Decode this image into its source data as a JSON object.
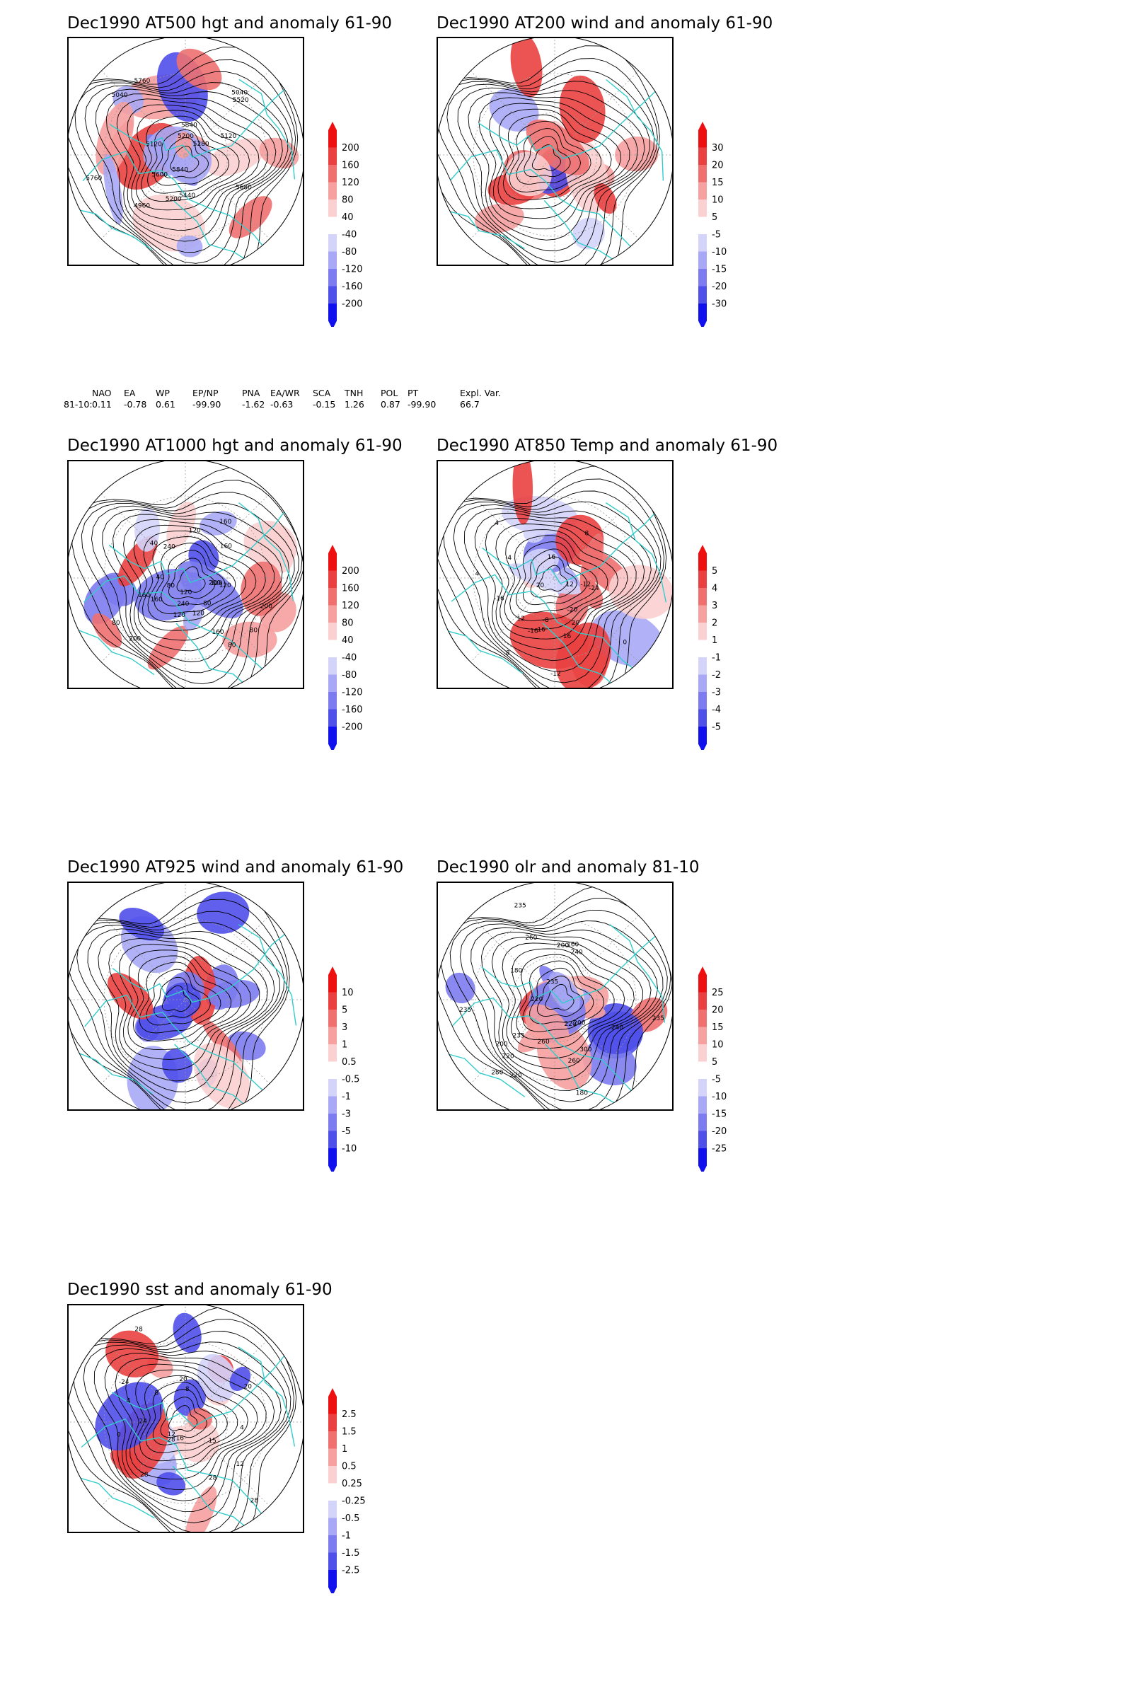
{
  "colors": {
    "coast": "#33cccc",
    "contour": "#000000",
    "red_max": "#ee1010",
    "blue_max": "#1010ee"
  },
  "chart_data": [
    {
      "type": "heatmap",
      "id": "p1",
      "title": "Dec1990 AT500 hgt and anomaly 61-90",
      "projection": "north-polar-stereographic",
      "colorbar": {
        "labels": [
          "200",
          "160",
          "120",
          "80",
          "40",
          "-40",
          "-80",
          "-120",
          "-160",
          "-200"
        ],
        "steps": 5
      },
      "contour_labels": [
        "5840",
        "5760",
        "5200",
        "5120",
        "5040",
        "4960",
        "5120",
        "5040",
        "5200",
        "5280",
        "5440",
        "5520",
        "5600",
        "5680",
        "5760",
        "5840"
      ]
    },
    {
      "type": "heatmap",
      "id": "p2",
      "title": "Dec1990 AT200 wind and anomaly 61-90",
      "projection": "north-polar-stereographic",
      "colorbar": {
        "labels": [
          "30",
          "20",
          "15",
          "10",
          "5",
          "-5",
          "-10",
          "-15",
          "-20",
          "-30"
        ],
        "steps": 5
      },
      "contour_labels": []
    },
    {
      "type": "heatmap",
      "id": "p3",
      "title": "Dec1990 AT1000 hgt and anomaly 61-90",
      "projection": "north-polar-stereographic",
      "colorbar": {
        "labels": [
          "200",
          "160",
          "120",
          "80",
          "40",
          "-40",
          "-80",
          "-120",
          "-160",
          "-200"
        ],
        "steps": 5
      },
      "contour_labels": [
        "80",
        "120",
        "80",
        "160",
        "200",
        "40",
        "120",
        "160",
        "200",
        "240",
        "120",
        "160",
        "40",
        "240",
        "80",
        "120",
        "160",
        "200",
        "160",
        "120",
        "80",
        "120",
        "80"
      ]
    },
    {
      "type": "heatmap",
      "id": "p4",
      "title": "Dec1990 AT850 Temp and anomaly 61-90",
      "projection": "north-polar-stereographic",
      "colorbar": {
        "labels": [
          "5",
          "4",
          "3",
          "2",
          "1",
          "-1",
          "-2",
          "-3",
          "-4",
          "-5"
        ],
        "steps": 5
      },
      "contour_labels": [
        "16",
        "12",
        "8",
        "4",
        "0",
        "-4",
        "-8",
        "-12",
        "-16",
        "-24",
        "-20",
        "-16",
        "-12",
        "8",
        "4",
        "16",
        "20",
        "12",
        "16",
        "20"
      ]
    },
    {
      "type": "heatmap",
      "id": "p5",
      "title": "Dec1990 AT925 wind and anomaly 61-90",
      "projection": "north-polar-stereographic",
      "colorbar": {
        "labels": [
          "10",
          "5",
          "3",
          "1",
          "0.5",
          "-0.5",
          "-1",
          "-3",
          "-5",
          "-10"
        ],
        "steps": 5
      },
      "contour_labels": []
    },
    {
      "type": "heatmap",
      "id": "p6",
      "title": "Dec1990 olr and anomaly 81-10",
      "projection": "north-polar-stereographic",
      "colorbar": {
        "labels": [
          "25",
          "20",
          "15",
          "10",
          "5",
          "-5",
          "-10",
          "-15",
          "-20",
          "-25"
        ],
        "steps": 5
      },
      "contour_labels": [
        "220",
        "260",
        "235",
        "240",
        "260",
        "235",
        "200",
        "220",
        "180",
        "160",
        "200",
        "180",
        "220",
        "235",
        "260",
        "300",
        "235",
        "280",
        "220",
        "235",
        "200",
        "240"
      ]
    },
    {
      "type": "heatmap",
      "id": "p7",
      "title": "Dec1990 sst and anomaly 61-90",
      "projection": "north-polar-stereographic",
      "colorbar": {
        "labels": [
          "2.5",
          "1.5",
          "1",
          "0.5",
          "0.25",
          "-0.25",
          "-0.5",
          "-1",
          "-1.5",
          "-2.5"
        ],
        "steps": 5
      },
      "contour_labels": [
        "28",
        "24",
        "20",
        "16",
        "12",
        "8",
        "4",
        "0",
        "-24",
        "28",
        "15",
        "20",
        "12",
        "8",
        "4",
        "28",
        "28",
        "28"
      ]
    }
  ],
  "teleconnections": {
    "headers": [
      "NAO",
      "EA",
      "WP",
      "EP/NP",
      "PNA",
      "EA/WR",
      "SCA",
      "TNH",
      "POL",
      "PT",
      "Expl. Var."
    ],
    "row_label": "81-10:",
    "values": [
      "0.11",
      "-0.78",
      "0.61",
      "-99.90",
      "-1.62",
      "-0.63",
      "-0.15",
      "1.26",
      "0.87",
      "-99.90",
      "66.7"
    ]
  }
}
